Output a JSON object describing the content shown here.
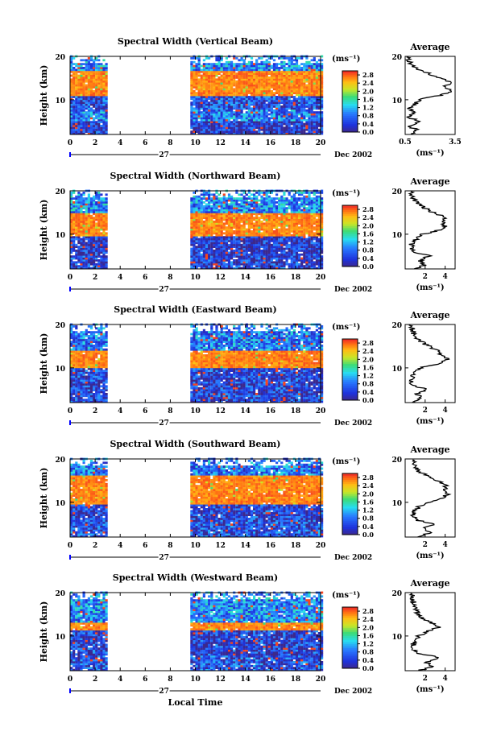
{
  "figure": {
    "x_axis_title": "Local Time",
    "date_label": "27",
    "month_label": "Dec 2002",
    "y_label": "Height (km)",
    "avg_title": "Average",
    "unit_label": "(ms⁻¹)",
    "colorbar_ticks": [
      "0.0",
      "0.4",
      "0.8",
      "1.2",
      "1.6",
      "2.0",
      "2.4",
      "2.8"
    ]
  },
  "chart_data": [
    {
      "type": "heatmap",
      "title": "Spectral Width (Vertical Beam)",
      "xlabel": "Local Time",
      "ylabel": "Height (km)",
      "xlim": [
        0,
        20
      ],
      "ylim": [
        2,
        20
      ],
      "x_ticks": [
        "0",
        "2",
        "4",
        "6",
        "8",
        "10",
        "12",
        "14",
        "16",
        "18",
        "20"
      ],
      "y_ticks": [
        "20",
        "10"
      ],
      "data_gap": [
        3,
        9.5
      ],
      "colorbar": {
        "label": "(ms⁻¹)",
        "range": [
          0,
          3.0
        ],
        "ticks": [
          "0.0",
          "0.4",
          "0.8",
          "1.2",
          "1.6",
          "2.0",
          "2.4",
          "2.8"
        ]
      },
      "bands": [
        {
          "h0": 2.0,
          "h1": 5.0,
          "value": 0.3
        },
        {
          "h0": 5.0,
          "h1": 7.5,
          "value": 0.8
        },
        {
          "h0": 7.5,
          "h1": 10.5,
          "value": 0.5
        },
        {
          "h0": 10.5,
          "h1": 16.5,
          "value": 2.9
        },
        {
          "h0": 16.5,
          "h1": 20.0,
          "value": 0.9
        }
      ],
      "average": {
        "title": "Average",
        "xlabel": "(ms⁻¹)",
        "xlim": [
          0.5,
          3.5
        ],
        "x_ticks": [
          "0.5",
          "3.5"
        ],
        "y_ticks": [
          "20",
          "10"
        ],
        "profile": [
          [
            2,
            0.8
          ],
          [
            3,
            1.2
          ],
          [
            4,
            0.7
          ],
          [
            5,
            1.4
          ],
          [
            6,
            0.6
          ],
          [
            7,
            1.0
          ],
          [
            8,
            0.7
          ],
          [
            9,
            1.1
          ],
          [
            10,
            1.3
          ],
          [
            11,
            2.6
          ],
          [
            12,
            3.2
          ],
          [
            13,
            2.9
          ],
          [
            14,
            3.3
          ],
          [
            15,
            2.5
          ],
          [
            16,
            2.0
          ],
          [
            17,
            1.2
          ],
          [
            18,
            0.9
          ],
          [
            19,
            0.7
          ],
          [
            20,
            0.6
          ]
        ]
      }
    },
    {
      "type": "heatmap",
      "title": "Spectral Width (Northward Beam)",
      "xlabel": "Local Time",
      "ylabel": "Height (km)",
      "xlim": [
        0,
        20
      ],
      "ylim": [
        2,
        20
      ],
      "x_ticks": [
        "0",
        "2",
        "4",
        "6",
        "8",
        "10",
        "12",
        "14",
        "16",
        "18",
        "20"
      ],
      "y_ticks": [
        "20",
        "10"
      ],
      "data_gap": [
        3,
        9.5
      ],
      "colorbar": {
        "label": "(ms⁻¹)",
        "range": [
          0,
          3.0
        ],
        "ticks": [
          "0.0",
          "0.4",
          "0.8",
          "1.2",
          "1.6",
          "2.0",
          "2.4",
          "2.8"
        ]
      },
      "bands": [
        {
          "h0": 2.0,
          "h1": 5.5,
          "value": 0.4
        },
        {
          "h0": 5.5,
          "h1": 9.5,
          "value": 0.3
        },
        {
          "h0": 9.5,
          "h1": 14.5,
          "value": 2.9
        },
        {
          "h0": 14.5,
          "h1": 20.0,
          "value": 0.9
        }
      ],
      "average": {
        "title": "Average",
        "xlabel": "(ms⁻¹)",
        "xlim": [
          0,
          5
        ],
        "x_ticks": [
          "2",
          "4"
        ],
        "y_ticks": [
          "20",
          "10"
        ],
        "profile": [
          [
            2,
            1.0
          ],
          [
            3,
            2.0
          ],
          [
            4,
            1.5
          ],
          [
            5,
            2.4
          ],
          [
            6,
            0.8
          ],
          [
            7,
            0.6
          ],
          [
            8,
            0.7
          ],
          [
            9,
            1.2
          ],
          [
            10,
            1.8
          ],
          [
            11,
            3.5
          ],
          [
            12,
            4.0
          ],
          [
            13,
            3.6
          ],
          [
            14,
            3.9
          ],
          [
            15,
            2.8
          ],
          [
            16,
            2.0
          ],
          [
            17,
            1.4
          ],
          [
            18,
            0.9
          ],
          [
            19,
            0.7
          ],
          [
            20,
            0.6
          ]
        ]
      }
    },
    {
      "type": "heatmap",
      "title": "Spectral Width (Eastward Beam)",
      "xlabel": "Local Time",
      "ylabel": "Height (km)",
      "xlim": [
        0,
        20
      ],
      "ylim": [
        2,
        20
      ],
      "x_ticks": [
        "0",
        "2",
        "4",
        "6",
        "8",
        "10",
        "12",
        "14",
        "16",
        "18",
        "20"
      ],
      "y_ticks": [
        "20",
        "10"
      ],
      "data_gap": [
        3,
        9.5
      ],
      "colorbar": {
        "label": "(ms⁻¹)",
        "range": [
          0,
          3.0
        ],
        "ticks": [
          "0.0",
          "0.4",
          "0.8",
          "1.2",
          "1.6",
          "2.0",
          "2.4",
          "2.8"
        ]
      },
      "bands": [
        {
          "h0": 2.0,
          "h1": 5.5,
          "value": 0.4
        },
        {
          "h0": 5.5,
          "h1": 10.0,
          "value": 0.4
        },
        {
          "h0": 10.0,
          "h1": 14.0,
          "value": 2.9
        },
        {
          "h0": 14.0,
          "h1": 20.0,
          "value": 0.8
        }
      ],
      "average": {
        "title": "Average",
        "xlabel": "(ms⁻¹)",
        "xlim": [
          0,
          5
        ],
        "x_ticks": [
          "2",
          "4"
        ],
        "y_ticks": [
          "20",
          "10"
        ],
        "profile": [
          [
            2,
            1.0
          ],
          [
            3,
            1.6
          ],
          [
            4,
            1.2
          ],
          [
            5,
            2.2
          ],
          [
            6,
            0.7
          ],
          [
            7,
            0.6
          ],
          [
            8,
            0.8
          ],
          [
            9,
            1.0
          ],
          [
            10,
            1.5
          ],
          [
            11,
            3.6
          ],
          [
            12,
            4.2
          ],
          [
            13,
            3.5
          ],
          [
            14,
            3.2
          ],
          [
            15,
            2.4
          ],
          [
            16,
            1.6
          ],
          [
            17,
            1.1
          ],
          [
            18,
            0.8
          ],
          [
            19,
            0.7
          ],
          [
            20,
            0.6
          ]
        ]
      }
    },
    {
      "type": "heatmap",
      "title": "Spectral Width (Southward Beam)",
      "xlabel": "Local Time",
      "ylabel": "Height (km)",
      "xlim": [
        0,
        20
      ],
      "ylim": [
        2,
        20
      ],
      "x_ticks": [
        "0",
        "2",
        "4",
        "6",
        "8",
        "10",
        "12",
        "14",
        "16",
        "18",
        "20"
      ],
      "y_ticks": [
        "20",
        "10"
      ],
      "data_gap": [
        3,
        9.5
      ],
      "colorbar": {
        "label": "(ms⁻¹)",
        "range": [
          0,
          3.0
        ],
        "ticks": [
          "0.0",
          "0.4",
          "0.8",
          "1.2",
          "1.6",
          "2.0",
          "2.4",
          "2.8"
        ]
      },
      "bands": [
        {
          "h0": 2.0,
          "h1": 5.5,
          "value": 0.5
        },
        {
          "h0": 5.5,
          "h1": 9.5,
          "value": 0.4
        },
        {
          "h0": 9.5,
          "h1": 16.0,
          "value": 2.9
        },
        {
          "h0": 16.0,
          "h1": 20.0,
          "value": 0.8
        }
      ],
      "average": {
        "title": "Average",
        "xlabel": "(ms⁻¹)",
        "xlim": [
          0,
          5
        ],
        "x_ticks": [
          "2",
          "4"
        ],
        "y_ticks": [
          "20",
          "10"
        ],
        "profile": [
          [
            2,
            1.2
          ],
          [
            3,
            2.5
          ],
          [
            4,
            1.8
          ],
          [
            5,
            3.0
          ],
          [
            6,
            1.0
          ],
          [
            7,
            0.8
          ],
          [
            8,
            0.9
          ],
          [
            9,
            1.4
          ],
          [
            10,
            2.2
          ],
          [
            11,
            3.8
          ],
          [
            12,
            4.3
          ],
          [
            13,
            3.9
          ],
          [
            14,
            4.1
          ],
          [
            15,
            3.2
          ],
          [
            16,
            2.2
          ],
          [
            17,
            1.5
          ],
          [
            18,
            1.0
          ],
          [
            19,
            0.8
          ],
          [
            20,
            0.7
          ]
        ]
      }
    },
    {
      "type": "heatmap",
      "title": "Spectral Width (Westward Beam)",
      "xlabel": "Local Time",
      "ylabel": "Height (km)",
      "xlim": [
        0,
        20
      ],
      "ylim": [
        2,
        20
      ],
      "x_ticks": [
        "0",
        "2",
        "4",
        "6",
        "8",
        "10",
        "12",
        "14",
        "16",
        "18",
        "20"
      ],
      "y_ticks": [
        "20",
        "10"
      ],
      "data_gap": [
        3,
        9.5
      ],
      "colorbar": {
        "label": "(ms⁻¹)",
        "range": [
          0,
          3.0
        ],
        "ticks": [
          "0.0",
          "0.4",
          "0.8",
          "1.2",
          "1.6",
          "2.0",
          "2.4",
          "2.8"
        ]
      },
      "bands": [
        {
          "h0": 2.0,
          "h1": 5.5,
          "value": 0.5
        },
        {
          "h0": 5.5,
          "h1": 11.0,
          "value": 0.4
        },
        {
          "h0": 11.0,
          "h1": 13.0,
          "value": 2.9
        },
        {
          "h0": 13.0,
          "h1": 20.0,
          "value": 0.9
        }
      ],
      "average": {
        "title": "Average",
        "xlabel": "(ms⁻¹)",
        "xlim": [
          0,
          5
        ],
        "x_ticks": [
          "2",
          "4"
        ],
        "y_ticks": [
          "20",
          "10"
        ],
        "profile": [
          [
            2,
            1.4
          ],
          [
            3,
            2.8
          ],
          [
            4,
            2.0
          ],
          [
            5,
            3.5
          ],
          [
            6,
            1.2
          ],
          [
            7,
            0.7
          ],
          [
            8,
            0.8
          ],
          [
            9,
            1.0
          ],
          [
            10,
            1.3
          ],
          [
            11,
            2.2
          ],
          [
            12,
            3.4
          ],
          [
            13,
            2.6
          ],
          [
            14,
            1.8
          ],
          [
            15,
            1.4
          ],
          [
            16,
            1.0
          ],
          [
            17,
            0.9
          ],
          [
            18,
            0.8
          ],
          [
            19,
            0.7
          ],
          [
            20,
            0.6
          ]
        ]
      }
    }
  ]
}
